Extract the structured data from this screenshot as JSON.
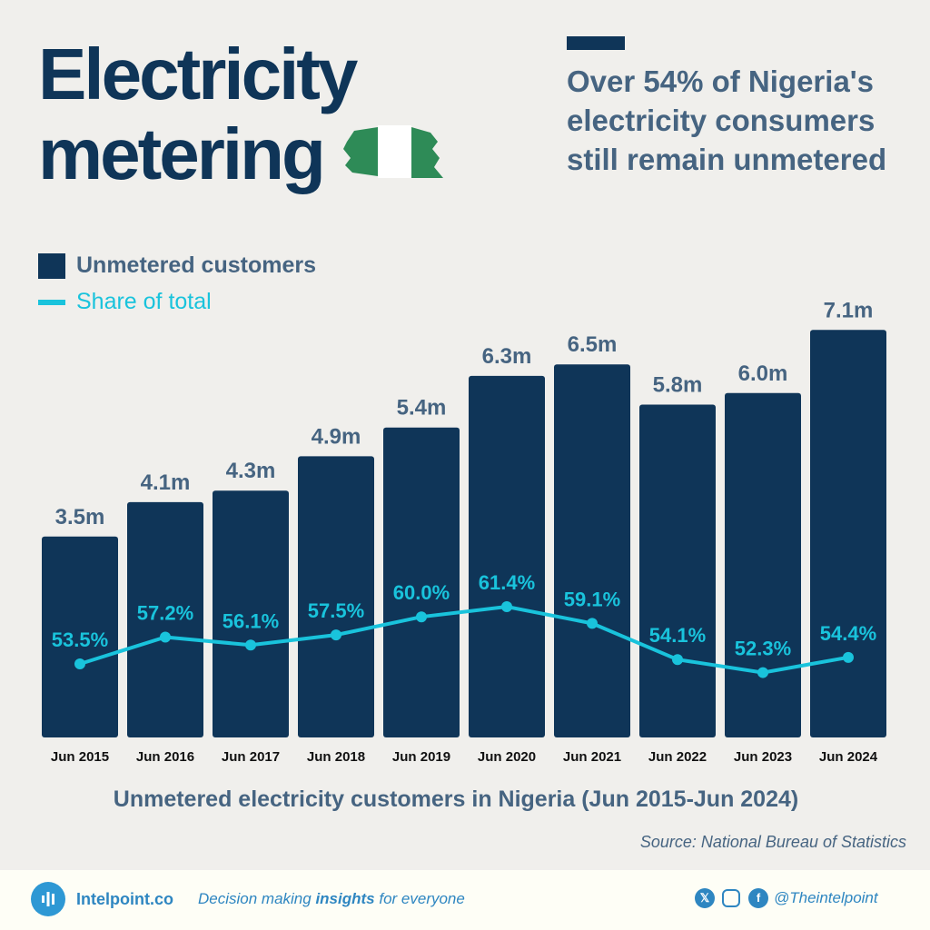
{
  "header": {
    "title_line1": "Electricity",
    "title_line2": "metering",
    "subtitle": "Over 54% of Nigeria's electricity consumers still remain unmetered"
  },
  "legend": {
    "bars": "Unmetered customers",
    "line": "Share of total"
  },
  "colors": {
    "bar": "#0f3558",
    "line": "#19c3dc",
    "text": "#466481",
    "flag_green": "#2e8b57"
  },
  "chart_data": {
    "type": "bar+line",
    "categories": [
      "Jun 2015",
      "Jun 2016",
      "Jun 2017",
      "Jun 2018",
      "Jun 2019",
      "Jun 2020",
      "Jun 2021",
      "Jun 2022",
      "Jun 2023",
      "Jun 2024"
    ],
    "series": [
      {
        "name": "Unmetered customers",
        "type": "bar",
        "unit": "m",
        "values": [
          3.5,
          4.1,
          4.3,
          4.9,
          5.4,
          6.3,
          6.5,
          5.8,
          6.0,
          7.1
        ],
        "labels": [
          "3.5m",
          "4.1m",
          "4.3m",
          "4.9m",
          "5.4m",
          "6.3m",
          "6.5m",
          "5.8m",
          "6.0m",
          "7.1m"
        ]
      },
      {
        "name": "Share of total",
        "type": "line",
        "unit": "%",
        "values": [
          53.5,
          57.2,
          56.1,
          57.5,
          60.0,
          61.4,
          59.1,
          54.1,
          52.3,
          54.4
        ],
        "labels": [
          "53.5%",
          "57.2%",
          "56.1%",
          "57.5%",
          "60.0%",
          "61.4%",
          "59.1%",
          "54.1%",
          "52.3%",
          "54.4%"
        ]
      }
    ],
    "title": "Unmetered electricity customers in Nigeria (Jun 2015-Jun 2024)",
    "grid": false,
    "legend": "top-left"
  },
  "source": "Source: National Bureau of Statistics",
  "footer": {
    "brand": "Intelpoint.co",
    "tagline_pre": "Decision making ",
    "tagline_bold": "insights",
    "tagline_post": " for everyone",
    "handle": "@Theintelpoint",
    "social_icons": [
      "x-icon",
      "instagram-icon",
      "facebook-icon"
    ]
  }
}
